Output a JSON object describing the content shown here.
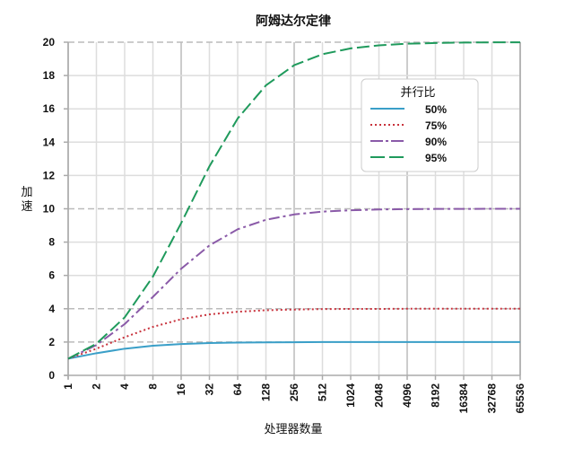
{
  "chart_data": {
    "type": "line",
    "title": "阿姆达尔定律",
    "xlabel": "处理器数量",
    "ylabel": "加速",
    "x": [
      1,
      2,
      4,
      8,
      16,
      32,
      64,
      128,
      256,
      512,
      1024,
      2048,
      4096,
      8192,
      16384,
      32768,
      65536
    ],
    "x_tick_labels": [
      "1",
      "2",
      "4",
      "8",
      "16",
      "32",
      "64",
      "128",
      "256",
      "512",
      "1024",
      "2048",
      "4096",
      "8192",
      "16384",
      "32768",
      "65536"
    ],
    "x_scale": "log2",
    "y_ticks": [
      0,
      2,
      4,
      6,
      8,
      10,
      12,
      14,
      16,
      18,
      20
    ],
    "ylim": [
      0,
      20
    ],
    "grid": true,
    "dashed_y_gridlines": [
      2,
      4,
      10,
      20
    ],
    "legend": {
      "title": "并行比",
      "position": "upper right"
    },
    "series": [
      {
        "name": "50%",
        "color": "#3a9fc8",
        "style": "solid",
        "values": [
          1.0,
          1.33,
          1.6,
          1.78,
          1.88,
          1.94,
          1.97,
          1.98,
          1.99,
          2.0,
          2.0,
          2.0,
          2.0,
          2.0,
          2.0,
          2.0,
          2.0
        ]
      },
      {
        "name": "75%",
        "color": "#c8323c",
        "style": "dotted",
        "values": [
          1.0,
          1.6,
          2.29,
          2.91,
          3.37,
          3.66,
          3.82,
          3.91,
          3.95,
          3.98,
          3.99,
          3.99,
          4.0,
          4.0,
          4.0,
          4.0,
          4.0
        ]
      },
      {
        "name": "90%",
        "color": "#8a5aa8",
        "style": "dashdot",
        "values": [
          1.0,
          1.82,
          3.08,
          4.71,
          6.4,
          7.8,
          8.77,
          9.34,
          9.66,
          9.83,
          9.91,
          9.96,
          9.98,
          9.99,
          9.99,
          10.0,
          10.0
        ]
      },
      {
        "name": "95%",
        "color": "#1f9a5c",
        "style": "dashed",
        "values": [
          1.0,
          1.9,
          3.48,
          5.93,
          9.14,
          12.55,
          15.42,
          17.41,
          18.62,
          19.28,
          19.63,
          19.81,
          19.91,
          19.95,
          19.98,
          19.99,
          19.99
        ]
      }
    ]
  }
}
